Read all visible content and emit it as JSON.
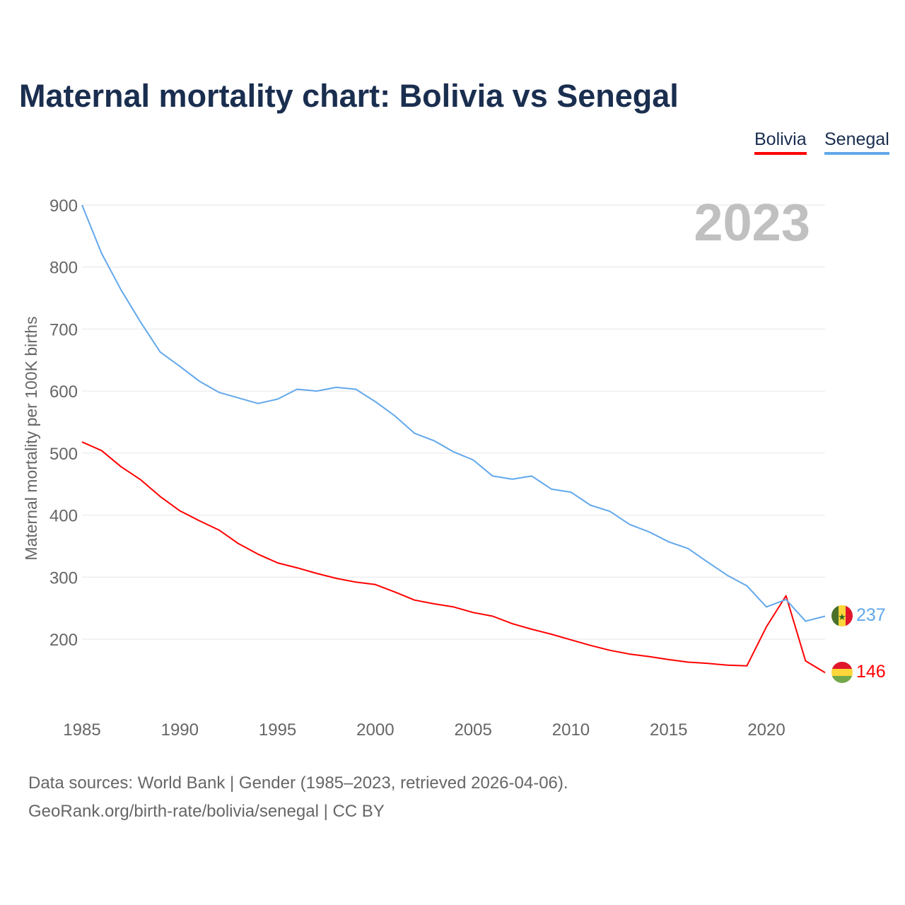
{
  "chart_data": {
    "type": "line",
    "title": "Maternal mortality chart: Bolivia vs Senegal",
    "ylabel": "Maternal mortality per 100K births",
    "xlabel": "",
    "year_label": "2023",
    "ylim": [
      100,
      900
    ],
    "xlim": [
      1985,
      2023
    ],
    "yticks": [
      200,
      300,
      400,
      500,
      600,
      700,
      800,
      900
    ],
    "xticks": [
      1985,
      1990,
      1995,
      2000,
      2005,
      2010,
      2015,
      2020
    ],
    "grid": true,
    "legend_position": "top-right",
    "x": [
      1985,
      1986,
      1987,
      1988,
      1989,
      1990,
      1991,
      1992,
      1993,
      1994,
      1995,
      1996,
      1997,
      1998,
      1999,
      2000,
      2001,
      2002,
      2003,
      2004,
      2005,
      2006,
      2007,
      2008,
      2009,
      2010,
      2011,
      2012,
      2013,
      2014,
      2015,
      2016,
      2017,
      2018,
      2019,
      2020,
      2021,
      2022,
      2023
    ],
    "series": [
      {
        "name": "Bolivia",
        "color": "#ff0000",
        "end_label": "146",
        "values": [
          518,
          504,
          478,
          457,
          430,
          407,
          391,
          376,
          354,
          337,
          323,
          315,
          306,
          298,
          292,
          288,
          276,
          263,
          257,
          252,
          243,
          237,
          225,
          216,
          208,
          199,
          190,
          182,
          176,
          172,
          167,
          163,
          161,
          158,
          157,
          220,
          270,
          165,
          146
        ]
      },
      {
        "name": "Senegal",
        "color": "#62a8ec",
        "end_label": "237",
        "values": [
          900,
          822,
          763,
          711,
          663,
          640,
          616,
          598,
          589,
          580,
          587,
          603,
          600,
          606,
          603,
          583,
          560,
          532,
          520,
          502,
          489,
          463,
          458,
          463,
          442,
          437,
          416,
          406,
          385,
          373,
          357,
          346,
          324,
          303,
          286,
          252,
          264,
          229,
          237
        ]
      }
    ]
  },
  "footer": {
    "line1": "Data sources: World Bank | Gender (1985–2023, retrieved 2026-04-06).",
    "line2": "GeoRank.org/birth-rate/bolivia/senegal | CC BY"
  }
}
